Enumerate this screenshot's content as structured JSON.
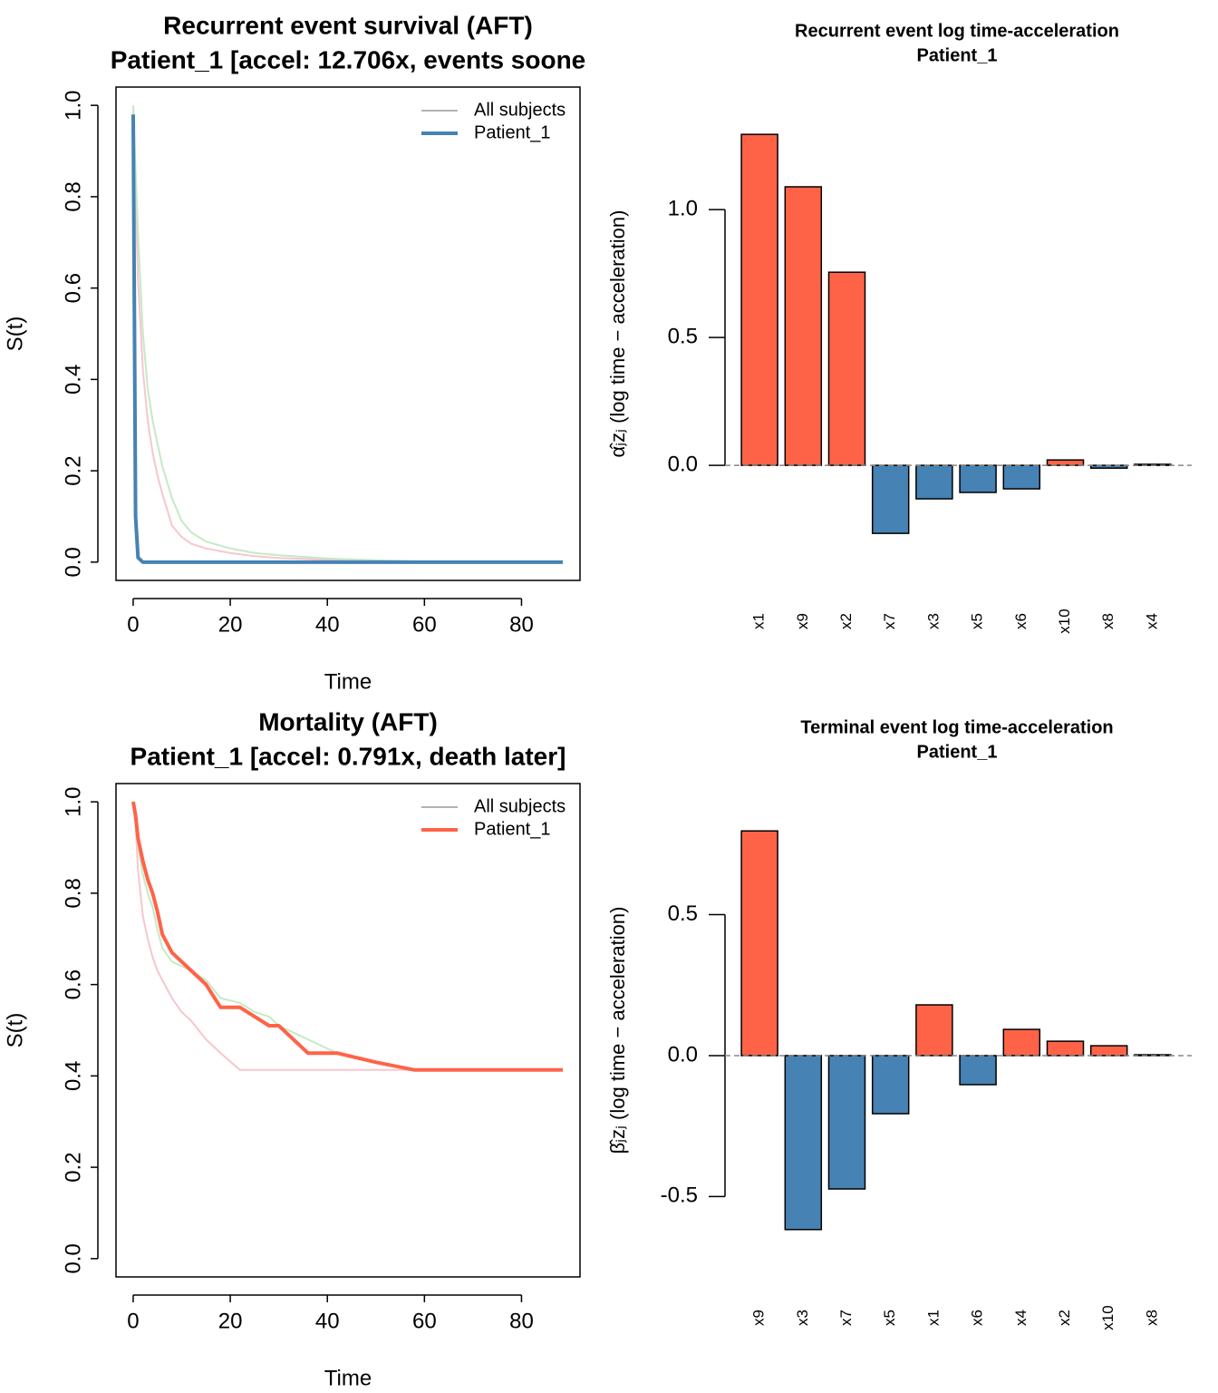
{
  "chart_data": [
    {
      "type": "line",
      "title": "Recurrent event survival (AFT)",
      "subtitle": "Patient_1  [accel: 12.706x, events soone",
      "x_label": "Time",
      "y_label": "S(t)",
      "x": [
        0,
        0.5,
        1,
        2,
        3,
        4,
        5,
        6,
        8,
        10,
        12,
        15,
        20,
        25,
        30,
        40,
        50,
        60,
        70,
        80,
        88.5
      ],
      "series": [
        {
          "name": "All subjects",
          "color": "#999999",
          "curves": [
            {
              "color": "#f7c6ce",
              "values": [
                1,
                0.8,
                0.62,
                0.42,
                0.31,
                0.24,
                0.19,
                0.15,
                0.08,
                0.055,
                0.04,
                0.03,
                0.02,
                0.013,
                0.009,
                0.005,
                0.002,
                0,
                0,
                0,
                null
              ]
            },
            {
              "color": "#c6e9c6",
              "values": [
                1,
                0.86,
                0.72,
                0.5,
                0.38,
                0.31,
                0.26,
                0.21,
                0.14,
                0.09,
                0.065,
                0.045,
                0.03,
                0.02,
                0.015,
                0.008,
                0.004,
                0.001,
                0,
                0,
                null
              ]
            }
          ]
        },
        {
          "name": "Patient_1",
          "color": "#4682b4",
          "values": [
            0.98,
            0.1,
            0.01,
            0,
            0,
            0,
            0,
            0,
            0,
            0,
            0,
            0,
            0,
            0,
            0,
            0,
            0,
            0,
            0,
            0,
            0
          ]
        }
      ],
      "xlim": [
        -3.54,
        92.05
      ],
      "ylim": [
        -0.04,
        1.04
      ],
      "xticks": [
        0,
        20,
        40,
        60,
        80
      ],
      "yticks": [
        {
          "value": 0,
          "label": "0.0"
        },
        {
          "value": 0.2,
          "label": "0.2"
        },
        {
          "value": 0.4,
          "label": "0.4"
        },
        {
          "value": 0.6,
          "label": "0.6"
        },
        {
          "value": 0.8,
          "label": "0.8"
        },
        {
          "value": 1,
          "label": "1.0"
        }
      ],
      "legend": "top-right"
    },
    {
      "type": "bar",
      "title": "Recurrent event log time-acceleration",
      "subtitle": "Patient_1",
      "y_label": "α̂ⱼzⱼ  (log time − acceleration)",
      "categories": [
        "x1",
        "x9",
        "x2",
        "x7",
        "x3",
        "x5",
        "x6",
        "x10",
        "x8",
        "x4"
      ],
      "values": [
        1.294,
        1.089,
        0.755,
        -0.266,
        -0.131,
        -0.106,
        -0.092,
        0.021,
        -0.011,
        0.004
      ],
      "positive_color": "#ff6347",
      "negative_color": "#4682b4",
      "ylim": [
        -0.45,
        1.479
      ],
      "yticks": [
        {
          "value": 0,
          "label": "0.0"
        },
        {
          "value": 0.5,
          "label": "0.5"
        },
        {
          "value": 1,
          "label": "1.0"
        }
      ]
    },
    {
      "type": "line",
      "title": "Mortality (AFT)",
      "subtitle": "Patient_1  [accel: 0.791x, death later]",
      "x_label": "Time",
      "y_label": "S(t)",
      "x": [
        0,
        0.5,
        1,
        2,
        3,
        4,
        5,
        6,
        8,
        10,
        12,
        15,
        18,
        22,
        25,
        28,
        30,
        36,
        42,
        50,
        58,
        70,
        80,
        88.5
      ],
      "series": [
        {
          "name": "All subjects",
          "color": "#999999",
          "curves": [
            {
              "color": "#f7c6ce",
              "values": [
                1,
                0.95,
                0.85,
                0.75,
                0.7,
                0.66,
                0.63,
                0.61,
                0.57,
                0.54,
                0.52,
                0.48,
                0.45,
                0.413,
                0.413,
                0.413,
                0.413,
                0.413,
                0.413,
                0.413,
                0.413,
                null,
                null,
                null
              ]
            },
            {
              "color": "#c6e9c6",
              "values": [
                1,
                0.96,
                0.9,
                0.84,
                0.8,
                0.77,
                0.72,
                0.68,
                0.65,
                0.64,
                0.63,
                0.61,
                0.57,
                0.56,
                0.54,
                0.53,
                0.51,
                0.48,
                0.45,
                0.43,
                0.415,
                null,
                null,
                null
              ]
            }
          ]
        },
        {
          "name": "Patient_1",
          "color": "#ff6347",
          "values": [
            1,
            0.97,
            0.92,
            0.87,
            0.83,
            0.8,
            0.76,
            0.71,
            0.67,
            0.65,
            0.63,
            0.6,
            0.55,
            0.55,
            0.53,
            0.51,
            0.51,
            0.45,
            0.45,
            0.43,
            0.413,
            0.413,
            0.413,
            0.413
          ]
        }
      ],
      "xlim": [
        -3.54,
        92.05
      ],
      "ylim": [
        -0.04,
        1.04
      ],
      "xticks": [
        0,
        20,
        40,
        60,
        80
      ],
      "yticks": [
        {
          "value": 0,
          "label": "0.0"
        },
        {
          "value": 0.2,
          "label": "0.2"
        },
        {
          "value": 0.4,
          "label": "0.4"
        },
        {
          "value": 0.6,
          "label": "0.6"
        },
        {
          "value": 0.8,
          "label": "0.8"
        },
        {
          "value": 1,
          "label": "1.0"
        }
      ],
      "legend": "top-right"
    },
    {
      "type": "bar",
      "title": "Terminal event log time-acceleration",
      "subtitle": "Patient_1",
      "y_label": "β̂ⱼzⱼ  (log time − acceleration)",
      "categories": [
        "x9",
        "x3",
        "x7",
        "x5",
        "x1",
        "x6",
        "x4",
        "x2",
        "x10",
        "x8"
      ],
      "values": [
        0.797,
        -0.617,
        -0.473,
        -0.206,
        0.18,
        -0.103,
        0.093,
        0.051,
        0.035,
        0.003
      ],
      "positive_color": "#ff6347",
      "negative_color": "#4682b4",
      "ylim": [
        -0.785,
        0.965
      ],
      "yticks": [
        {
          "value": -0.5,
          "label": "-0.5"
        },
        {
          "value": 0,
          "label": "0.0"
        },
        {
          "value": 0.5,
          "label": "0.5"
        }
      ]
    }
  ]
}
